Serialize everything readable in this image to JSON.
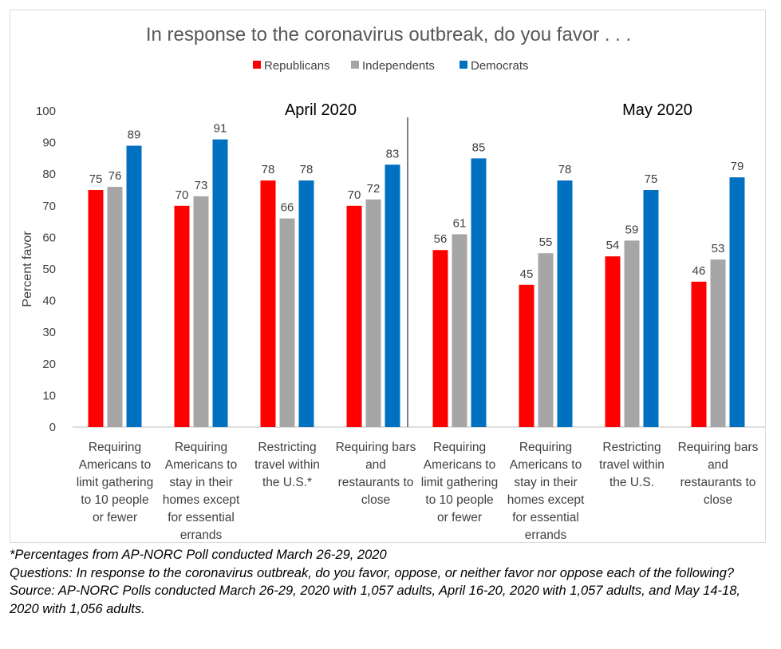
{
  "chart_data": {
    "type": "bar",
    "title": "In response to the coronavirus outbreak, do you favor . . .",
    "ylabel": "Percent favor",
    "ylim": [
      0,
      100
    ],
    "yticks": [
      0,
      10,
      20,
      30,
      40,
      50,
      60,
      70,
      80,
      90,
      100
    ],
    "grid": false,
    "legend_position": "top",
    "legend": [
      "Republicans",
      "Independents",
      "Democrats"
    ],
    "colors": {
      "Republicans": "#ff0000",
      "Independents": "#a6a6a6",
      "Democrats": "#0070c0"
    },
    "groups": [
      {
        "name": "April 2020",
        "categories": [
          [
            "Requiring",
            "Americans to",
            "limit gathering",
            "to 10 people",
            "or fewer"
          ],
          [
            "Requiring",
            "Americans to",
            "stay in their",
            "homes except",
            "for essential",
            "errands"
          ],
          [
            "Restricting",
            "travel within",
            "the U.S.*"
          ],
          [
            "Requiring bars",
            "and",
            "restaurants to",
            "close"
          ]
        ],
        "series": [
          {
            "name": "Republicans",
            "values": [
              75,
              70,
              78,
              70
            ]
          },
          {
            "name": "Independents",
            "values": [
              76,
              73,
              66,
              72
            ]
          },
          {
            "name": "Democrats",
            "values": [
              89,
              91,
              78,
              83
            ]
          }
        ]
      },
      {
        "name": "May 2020",
        "categories": [
          [
            "Requiring",
            "Americans to",
            "limit gathering",
            "to 10 people",
            "or fewer"
          ],
          [
            "Requiring",
            "Americans to",
            "stay in their",
            "homes except",
            "for essential",
            "errands"
          ],
          [
            "Restricting",
            "travel within",
            "the U.S."
          ],
          [
            "Requiring bars",
            "and",
            "restaurants to",
            "close"
          ]
        ],
        "series": [
          {
            "name": "Republicans",
            "values": [
              56,
              45,
              54,
              46
            ]
          },
          {
            "name": "Independents",
            "values": [
              61,
              55,
              59,
              53
            ]
          },
          {
            "name": "Democrats",
            "values": [
              85,
              78,
              75,
              79
            ]
          }
        ]
      }
    ]
  },
  "notes": {
    "asterisk": "*Percentages from AP-NORC Poll conducted March 26-29, 2020",
    "questions": "Questions: In response to the coronavirus outbreak, do you favor, oppose, or neither favor nor oppose each of the following?",
    "source": "Source: AP-NORC Polls conducted March 26-29, 2020 with 1,057 adults, April 16-20, 2020 with 1,057 adults, and May 14-18, 2020 with 1,056 adults."
  }
}
